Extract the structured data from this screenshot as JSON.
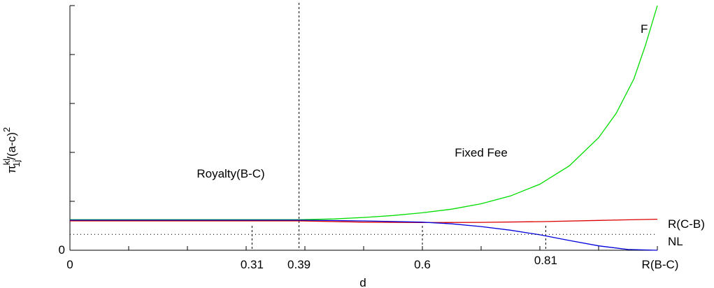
{
  "chart_data": {
    "type": "line",
    "title": "",
    "xlabel": "d",
    "ylabel": {
      "base": "π",
      "sup": "kl",
      "sub": "1j",
      "rest": "/(a-c)",
      "sup2": "2"
    },
    "xlim": [
      0,
      1
    ],
    "ylim": [
      0,
      1
    ],
    "x_ticks": [
      {
        "value": 0,
        "label": "0"
      },
      {
        "value": 0.31,
        "label": "0.31"
      },
      {
        "value": 0.39,
        "label": "0.39"
      },
      {
        "value": 0.6,
        "label": "0.6"
      },
      {
        "value": 0.81,
        "label": "0.81"
      },
      {
        "value": 1,
        "label": "R(B-C)"
      }
    ],
    "y_tick_label_zero": "0",
    "series": [
      {
        "name": "F",
        "color": "#00dd00",
        "x": [
          0.0,
          0.39,
          0.45,
          0.5,
          0.55,
          0.6,
          0.65,
          0.7,
          0.75,
          0.8,
          0.85,
          0.9,
          0.93,
          0.96,
          0.98,
          1.0
        ],
        "y": [
          0.125,
          0.125,
          0.128,
          0.134,
          0.142,
          0.153,
          0.168,
          0.19,
          0.222,
          0.27,
          0.345,
          0.46,
          0.56,
          0.7,
          0.84,
          1.0
        ]
      },
      {
        "name": "R(C-B)",
        "color": "#dd0000",
        "x": [
          0.0,
          0.39,
          0.5,
          0.6,
          0.7,
          0.8,
          0.9,
          1.0
        ],
        "y": [
          0.12,
          0.12,
          0.115,
          0.113,
          0.114,
          0.117,
          0.122,
          0.127
        ]
      },
      {
        "name": "",
        "color": "#0000dd",
        "x": [
          0.0,
          0.39,
          0.5,
          0.6,
          0.65,
          0.7,
          0.75,
          0.8,
          0.85,
          0.9,
          0.95,
          1.0
        ],
        "y": [
          0.123,
          0.123,
          0.12,
          0.115,
          0.108,
          0.097,
          0.082,
          0.063,
          0.04,
          0.018,
          0.003,
          0.0
        ]
      },
      {
        "name": "NL",
        "color": "#000000",
        "style": "dotted",
        "x": [
          0,
          1
        ],
        "y": [
          0.065,
          0.065
        ]
      }
    ],
    "region_labels": [
      "Royalty(B-C)",
      "Fixed Fee"
    ],
    "vertical_dashed": [
      0.31,
      0.39,
      0.6,
      0.81
    ],
    "grid": false,
    "legend": "none"
  }
}
